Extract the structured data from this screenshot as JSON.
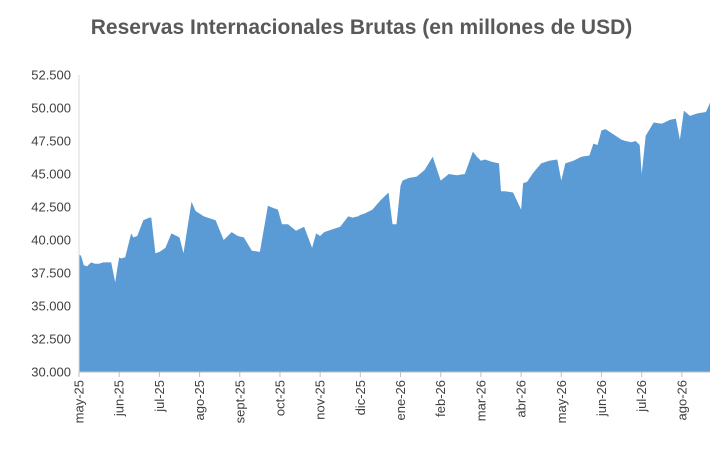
{
  "chart_data": {
    "type": "area",
    "title": "Reservas Internacionales Brutas (en millones de USD)",
    "xlabel": "",
    "ylabel": "",
    "ylim": [
      30000,
      52500
    ],
    "yticks": [
      "30.000",
      "32.500",
      "35.000",
      "37.500",
      "40.000",
      "42.500",
      "45.000",
      "47.500",
      "50.000",
      "52.500"
    ],
    "categories": [
      "may-25",
      "jun-25",
      "jul-25",
      "ago-25",
      "sept-25",
      "oct-25",
      "nov-25",
      "dic-25",
      "ene-26",
      "feb-26",
      "mar-26",
      "abr-26",
      "may-26",
      "jun-26",
      "jul-26",
      "ago-26"
    ],
    "grid": false,
    "legend": "none",
    "color": "#5B9BD5",
    "series": [
      {
        "x": [
          0.0,
          0.05,
          0.12,
          0.2,
          0.3,
          0.4,
          0.5,
          0.6,
          0.7,
          0.8,
          0.9,
          0.95,
          1.0,
          1.05,
          1.15,
          1.3,
          1.35,
          1.45,
          1.6,
          1.75,
          1.8,
          1.9,
          2.0,
          2.05,
          2.15,
          2.3,
          2.5,
          2.6,
          2.8,
          2.9,
          3.0,
          3.05,
          3.1,
          3.2,
          3.4,
          3.6,
          3.8,
          3.95,
          4.1,
          4.3,
          4.5,
          4.7,
          4.85,
          4.95,
          5.05,
          5.2,
          5.4,
          5.6,
          5.8,
          5.9,
          6.0,
          6.1,
          6.3,
          6.5,
          6.7,
          6.8,
          6.95,
          7.0,
          7.1,
          7.3,
          7.5,
          7.7,
          7.8,
          7.9,
          8.0,
          8.05,
          8.2,
          8.4,
          8.6,
          8.8,
          9.0,
          9.2,
          9.4,
          9.6,
          9.8,
          9.9,
          10.0,
          10.1,
          10.3,
          10.45,
          10.5,
          10.6,
          10.8,
          11.0,
          11.05,
          11.15,
          11.3,
          11.5,
          11.7,
          11.9,
          12.0,
          12.1,
          12.3,
          12.5,
          12.7,
          12.8,
          12.9,
          13.0,
          13.1,
          13.3,
          13.5,
          13.6,
          13.75,
          13.85,
          13.95,
          14.0,
          14.1,
          14.2,
          14.3,
          14.5,
          14.7,
          14.85,
          14.95,
          15.05,
          15.2,
          15.4,
          15.6,
          15.7
        ],
        "values": [
          38900,
          38800,
          38100,
          38000,
          38300,
          38200,
          38200,
          38300,
          38300,
          38300,
          36800,
          37800,
          38700,
          38600,
          38700,
          40500,
          40200,
          40300,
          41500,
          41700,
          41700,
          39000,
          39100,
          39200,
          39400,
          40500,
          40200,
          39000,
          42900,
          42200,
          42000,
          41900,
          41800,
          41700,
          41500,
          40000,
          40600,
          40300,
          40200,
          39200,
          39100,
          42600,
          42400,
          42300,
          41200,
          41200,
          40700,
          41000,
          39400,
          40500,
          40300,
          40600,
          40800,
          41000,
          41800,
          41700,
          41800,
          41900,
          42000,
          42300,
          43000,
          43600,
          41200,
          41200,
          44100,
          44500,
          44700,
          44800,
          45300,
          46300,
          44500,
          45000,
          44900,
          45000,
          46700,
          46300,
          46000,
          46100,
          45900,
          45800,
          43700,
          43700,
          43600,
          42300,
          44300,
          44400,
          45100,
          45800,
          46000,
          46100,
          44500,
          45800,
          46000,
          46300,
          46400,
          47300,
          47200,
          48300,
          48400,
          48000,
          47600,
          47500,
          47400,
          47500,
          47200,
          45000,
          47900,
          48400,
          48900,
          48800,
          49100,
          49200,
          47600,
          49800,
          49400,
          49600,
          49700,
          50400
        ]
      }
    ]
  }
}
